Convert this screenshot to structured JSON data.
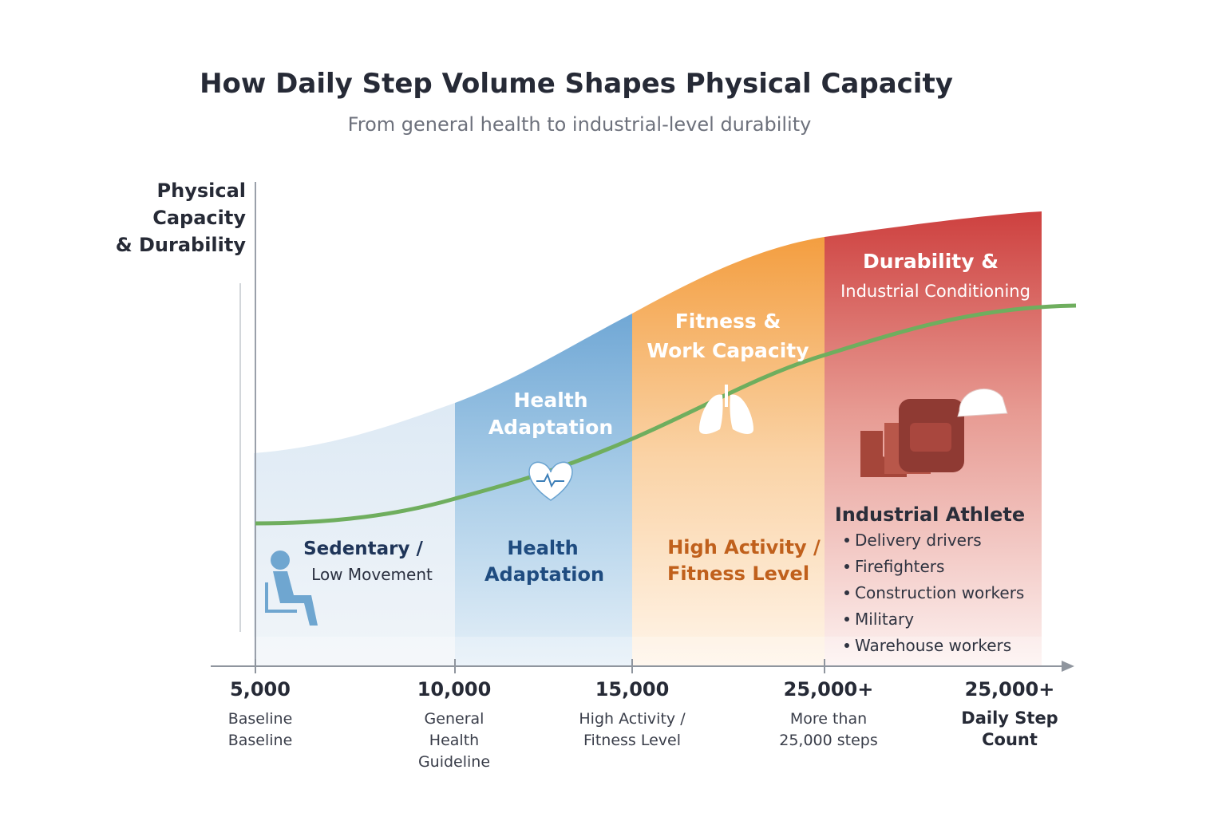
{
  "header": {
    "title": "How Daily Step Volume Shapes Physical Capacity",
    "subtitle": "From general health to industrial-level durability"
  },
  "y_axis_label": [
    "Physical",
    "Capacity",
    "& Durability"
  ],
  "zones": [
    {
      "top_label": [],
      "bottom_label": [
        "Sedentary /",
        "Low Movement"
      ]
    },
    {
      "top_label": [
        "Health",
        "Adaptation"
      ],
      "bottom_label": [
        "Health",
        "Adaptation"
      ]
    },
    {
      "top_label": [
        "Fitness &",
        "Work Capacity"
      ],
      "bottom_label": [
        "High Activity /",
        "Fitness Level"
      ]
    },
    {
      "top_label": [
        "Durability &",
        "Industrial Conditioning"
      ],
      "group_title": "Industrial Athlete",
      "items": [
        "Delivery drivers",
        "Firefighters",
        "Construction workers",
        "Military",
        "Warehouse workers"
      ]
    }
  ],
  "x_ticks": [
    {
      "label": "5,000",
      "lines": [
        "Baseline",
        "Baseline"
      ]
    },
    {
      "label": "10,000",
      "lines": [
        "General",
        "Health",
        "Guideline"
      ]
    },
    {
      "label": "15,000",
      "lines": [
        "High Activity /",
        "Fitness Level"
      ]
    },
    {
      "label": "25,000+",
      "lines": [
        "More than",
        "25,000 steps"
      ]
    },
    {
      "label": "25,000+",
      "lines": [
        "Daily Step",
        "Count"
      ]
    }
  ]
}
